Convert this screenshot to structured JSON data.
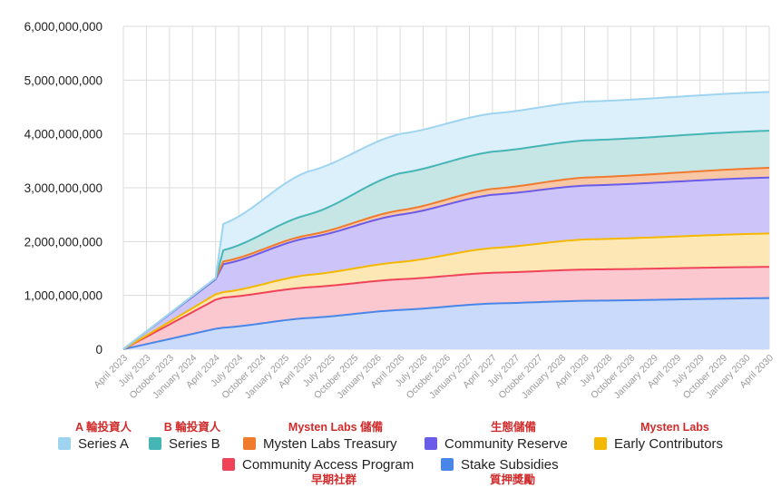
{
  "chart_data": {
    "type": "area",
    "stacked": true,
    "title": "",
    "xlabel": "",
    "ylabel": "",
    "ylim": [
      0,
      6000000000
    ],
    "yticks": [
      {
        "value": 0,
        "label": "0"
      },
      {
        "value": 1000000000,
        "label": "1,000,000,000"
      },
      {
        "value": 2000000000,
        "label": "2,000,000,000"
      },
      {
        "value": 3000000000,
        "label": "3,000,000,000"
      },
      {
        "value": 4000000000,
        "label": "4,000,000,000"
      },
      {
        "value": 5000000000,
        "label": "5,000,000,000"
      },
      {
        "value": 6000000000,
        "label": "6,000,000,000"
      }
    ],
    "x_labels": [
      "April 2023",
      "July 2023",
      "October 2023",
      "January 2024",
      "April 2024",
      "July 2024",
      "October 2024",
      "January 2025",
      "April 2025",
      "July 2025",
      "October 2025",
      "January 2026",
      "April 2026",
      "July 2026",
      "October 2026",
      "January 2027",
      "April 2027",
      "July 2027",
      "October 2027",
      "January 2028",
      "April 2028",
      "July 2028",
      "October 2028",
      "January 2029",
      "April 2029",
      "July 2029",
      "October 2029",
      "January 2030",
      "April 2030"
    ],
    "x_months": [
      0,
      12,
      13,
      24,
      36,
      48,
      60,
      84
    ],
    "grid": true,
    "legend_position": "bottom",
    "series": [
      {
        "name": "Stake Subsidies",
        "color": "#4a86e8",
        "fill": "#c9dafa",
        "cumulative": [
          0,
          380000000,
          400000000,
          580000000,
          730000000,
          850000000,
          900000000,
          950000000
        ]
      },
      {
        "name": "Community Access Program",
        "color": "#f04358",
        "fill": "#fcc8d0",
        "cumulative": [
          0,
          920000000,
          960000000,
          1150000000,
          1300000000,
          1420000000,
          1480000000,
          1530000000
        ]
      },
      {
        "name": "Early Contributors",
        "color": "#f5b800",
        "fill": "#fde7b4",
        "cumulative": [
          0,
          1020000000,
          1060000000,
          1380000000,
          1620000000,
          1880000000,
          2040000000,
          2150000000
        ]
      },
      {
        "name": "Community Reserve",
        "color": "#6a5ce8",
        "fill": "#cdc5fa",
        "cumulative": [
          0,
          1300000000,
          1580000000,
          2070000000,
          2500000000,
          2870000000,
          3040000000,
          3190000000
        ]
      },
      {
        "name": "Mysten Labs Treasury",
        "color": "#f07a2e",
        "fill": "#f7c7a6",
        "cumulative": [
          0,
          1320000000,
          1630000000,
          2120000000,
          2580000000,
          2980000000,
          3190000000,
          3370000000
        ]
      },
      {
        "name": "Series B",
        "color": "#45b5b5",
        "fill": "#c6e6e6",
        "cumulative": [
          0,
          1320000000,
          1840000000,
          2500000000,
          3270000000,
          3670000000,
          3880000000,
          4060000000
        ]
      },
      {
        "name": "Series A",
        "color": "#9fd4f0",
        "fill": "#dcf0fc",
        "cumulative": [
          0,
          1320000000,
          2330000000,
          3300000000,
          4000000000,
          4380000000,
          4600000000,
          4780000000
        ]
      }
    ],
    "legend_row1": [
      {
        "name": "Series A",
        "color": "#9fd4f0"
      },
      {
        "name": "Series B",
        "color": "#45b5b5"
      },
      {
        "name": "Mysten Labs Treasury",
        "color": "#f07a2e"
      },
      {
        "name": "Community Reserve",
        "color": "#6a5ce8"
      },
      {
        "name": "Early Contributors",
        "color": "#f5b800"
      }
    ],
    "legend_row2": [
      {
        "name": "Community Access Program",
        "color": "#f04358"
      },
      {
        "name": "Stake Subsidies",
        "color": "#4a86e8"
      }
    ],
    "annotations_top": [
      "A 輪投資人",
      "B 輪投資人",
      "Mysten Labs 儲備",
      "生態儲備",
      "Mysten Labs"
    ],
    "annotations_bottom": [
      "早期社群",
      "質押獎勵"
    ],
    "annotation_color": "#d12b2b"
  }
}
